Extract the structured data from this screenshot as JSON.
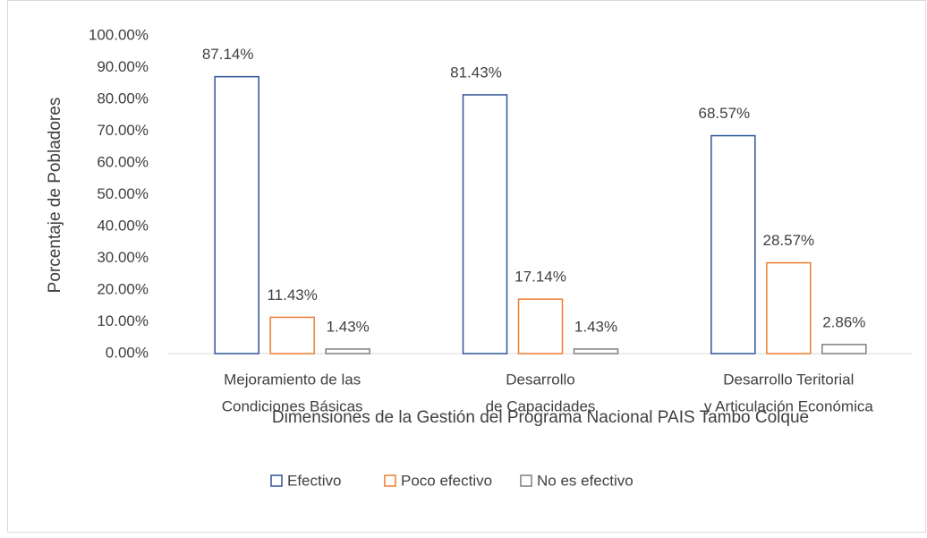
{
  "chart_data": {
    "type": "bar",
    "categories": [
      [
        "Mejoramiento de las",
        "Condiciones Básicas"
      ],
      [
        "Desarrollo",
        "de Capacidades"
      ],
      [
        "Desarrollo Teritorial",
        "y Articulación Económica"
      ]
    ],
    "x_label": "Dimensiones de la Gestión del Programa Nacional PAIS Tambo Colque",
    "y_label": "Porcentaje de Pobladores",
    "series": [
      {
        "name": "Efectivo",
        "color": "#2f5597",
        "values": [
          87.14,
          81.43,
          68.57
        ],
        "value_labels": [
          "87.14%",
          "81.43%",
          "68.57%"
        ]
      },
      {
        "name": "Poco efectivo",
        "color": "#ed7d31",
        "values": [
          11.43,
          17.14,
          28.57
        ],
        "value_labels": [
          "11.43%",
          "17.14%",
          "28.57%"
        ]
      },
      {
        "name": "No es efectivo",
        "color": "#7f7f7f",
        "values": [
          1.43,
          1.43,
          2.86
        ],
        "value_labels": [
          "1.43%",
          "1.43%",
          "2.86%"
        ]
      }
    ],
    "ylim": [
      0,
      100
    ],
    "yticks": [
      {
        "value": 0,
        "label": "0.00%"
      },
      {
        "value": 10,
        "label": "10.00%"
      },
      {
        "value": 20,
        "label": "20.00%"
      },
      {
        "value": 30,
        "label": "30.00%"
      },
      {
        "value": 40,
        "label": "40.00%"
      },
      {
        "value": 50,
        "label": "50.00%"
      },
      {
        "value": 60,
        "label": "60.00%"
      },
      {
        "value": 70,
        "label": "70.00%"
      },
      {
        "value": 80,
        "label": "80.00%"
      },
      {
        "value": 90,
        "label": "90.00%"
      },
      {
        "value": 100,
        "label": "100.00%"
      }
    ],
    "grid": false,
    "legend": "bottom"
  }
}
